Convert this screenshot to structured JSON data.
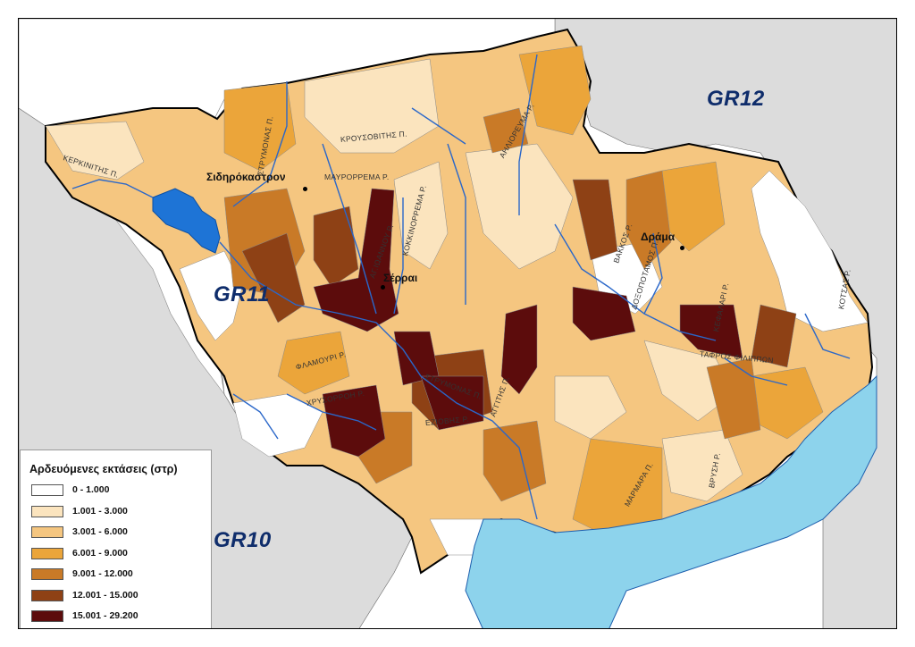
{
  "districts": [
    "GR12",
    "GR11",
    "GR10"
  ],
  "cities": [
    "Σιδηρόκαστρον",
    "Σέρραι",
    "Δράμα"
  ],
  "rivers": [
    "ΚΕΡΚΙΝΙΤΗΣ Π.",
    "ΣΤΡΥΜΟΝΑΣ Π.",
    "ΚΡΟΥΣΟΒΙΤΗΣ Π.",
    "ΜΑΥΡΟΡΡΕΜΑ Ρ.",
    "ΑΗΛΙΟΡΕΥΜΑ Ρ.",
    "ΚΟΚΚΙΝΟΡΡΕΜΑ Ρ.",
    "ΑΓ.ΙΩΑΝΝΟΥ Ρ.",
    "ΦΛΑΜΟΥΡΙ Ρ.",
    "ΧΡΥΣΟΡΡΟΗ Ρ.",
    "ΣΤΡΥΜΟΝΑΣ Π.",
    "ΕΖΙΟΒΗΣ Ρ.",
    "ΑΓΓΙΤΗΣ Π.",
    "ΒΑΚΚΟΣ Ρ.",
    "ΔΟΞΟΠΟΤΑΜΟΣ Π.",
    "ΚΕΦΑΛΑΡΙ Ρ.",
    "ΤΑΦΡΟΣ ΦΙΛΙΠΠΩΝ",
    "ΚΟΤΣΑΣ Ρ.",
    "ΜΑΡΜΑΡΑ Π.",
    "ΒΡΥΣΗ Ρ."
  ],
  "legend": {
    "title": "Αρδευόμενες εκτάσεις (στρ)",
    "classes": [
      {
        "label": "0 - 1.000",
        "color": "#ffffff"
      },
      {
        "label": "1.001 - 3.000",
        "color": "#fbe4be"
      },
      {
        "label": "3.001 - 6.000",
        "color": "#f5c680"
      },
      {
        "label": "6.001 - 9.000",
        "color": "#eba53a"
      },
      {
        "label": "9.001 - 12.000",
        "color": "#c97a27"
      },
      {
        "label": "12.001 - 15.000",
        "color": "#8e4115"
      },
      {
        "label": "15.001 - 29.200",
        "color": "#5c0c0c"
      }
    ]
  },
  "colors": {
    "neighbor": "#dcdcdc",
    "outside": "#ffffff",
    "sea": "#8dd3ec",
    "lake": "#1e74d6",
    "river": "#2a67c9",
    "border": "#000000"
  }
}
